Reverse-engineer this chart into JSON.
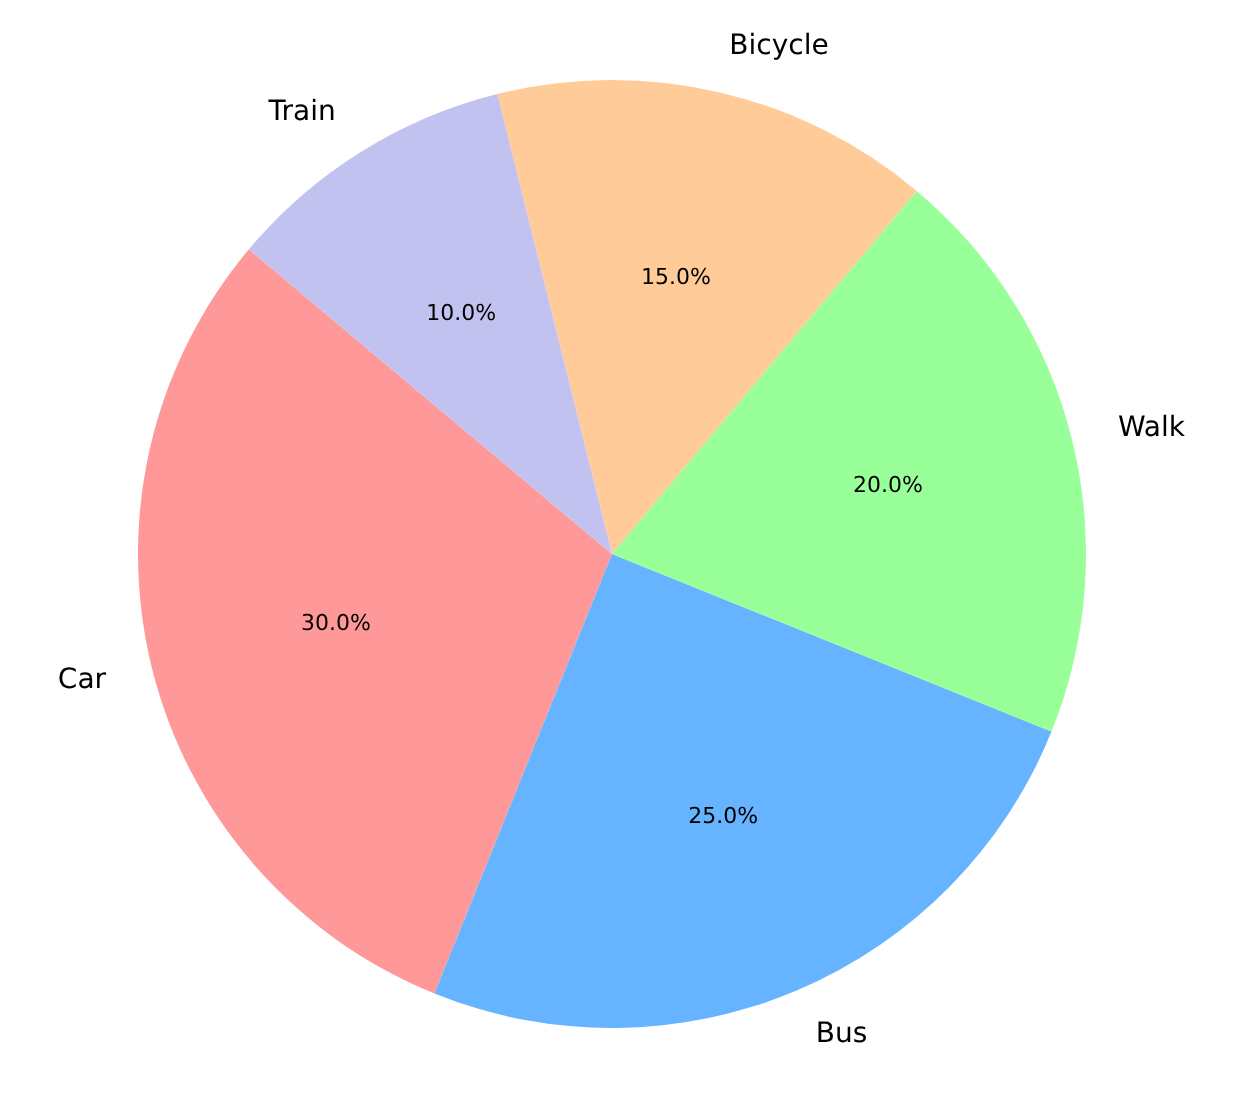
{
  "chart_data": {
    "type": "pie",
    "categories": [
      "Car",
      "Bus",
      "Walk",
      "Bicycle",
      "Train"
    ],
    "values": [
      30,
      25,
      20,
      15,
      10
    ],
    "value_labels": [
      "30.0%",
      "25.0%",
      "20.0%",
      "15.0%",
      "10.0%"
    ],
    "colors": [
      "#ff9999",
      "#66b3ff",
      "#99ff99",
      "#ffcc99",
      "#c2c2f0"
    ],
    "legend": false
  }
}
